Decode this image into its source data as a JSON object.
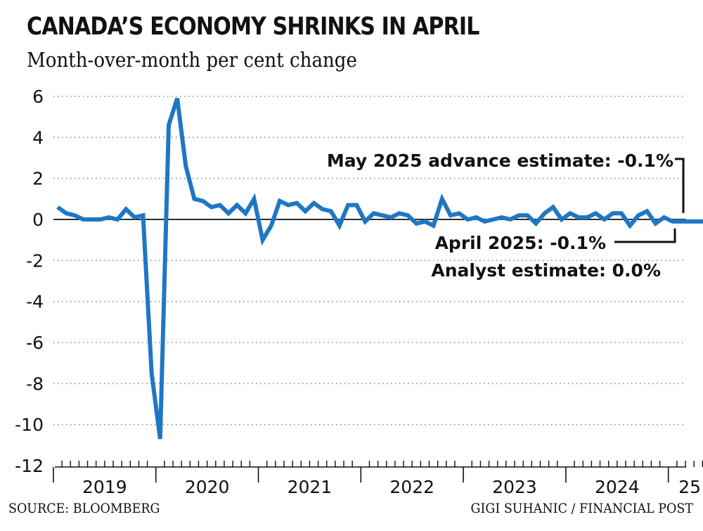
{
  "header": {
    "title": "CANADA’S ECONOMY SHRINKS IN APRIL",
    "subtitle": "Month-over-month per cent change"
  },
  "footer": {
    "source": "SOURCE: BLOOMBERG",
    "credit": "GIGI SUHANIC / FINANCIAL POST"
  },
  "colors": {
    "line": "#1f77c4",
    "axis": "#111111",
    "grid": "#888888"
  },
  "chart_data": {
    "type": "line",
    "title": "CANADA’S ECONOMY SHRINKS IN APRIL",
    "subtitle": "Month-over-month per cent change",
    "ylim": [
      -12,
      6
    ],
    "yticks": [
      "6",
      "4",
      "2",
      "0",
      "-2",
      "-4",
      "-6",
      "-8",
      "-10",
      "-12"
    ],
    "ytick_values": [
      6,
      4,
      2,
      0,
      -2,
      -4,
      -6,
      -8,
      -10,
      -12
    ],
    "grid": "dotted horizontal",
    "x_start": "2019-01",
    "x_end": "2025-05",
    "year_labels": [
      {
        "label": "2019",
        "year": 2019
      },
      {
        "label": "2020",
        "year": 2020
      },
      {
        "label": "2021",
        "year": 2021
      },
      {
        "label": "2022",
        "year": 2022
      },
      {
        "label": "2023",
        "year": 2023
      },
      {
        "label": "2024",
        "year": 2024
      },
      {
        "label": "25",
        "year": 2025
      }
    ],
    "series": [
      {
        "x": [
          "2019-01",
          "2019-02",
          "2019-03",
          "2019-04",
          "2019-05",
          "2019-06",
          "2019-07",
          "2019-08",
          "2019-09",
          "2019-10",
          "2019-11",
          "2019-12",
          "2020-01",
          "2020-02",
          "2020-03",
          "2020-04",
          "2020-05",
          "2020-06",
          "2020-07",
          "2020-08",
          "2020-09",
          "2020-10",
          "2020-11",
          "2020-12",
          "2021-01",
          "2021-02",
          "2021-03",
          "2021-04",
          "2021-05",
          "2021-06",
          "2021-07",
          "2021-08",
          "2021-09",
          "2021-10",
          "2021-11",
          "2021-12",
          "2022-01",
          "2022-02",
          "2022-03",
          "2022-04",
          "2022-05",
          "2022-06",
          "2022-07",
          "2022-08",
          "2022-09",
          "2022-10",
          "2022-11",
          "2022-12",
          "2023-01",
          "2023-02",
          "2023-03",
          "2023-04",
          "2023-05",
          "2023-06",
          "2023-07",
          "2023-08",
          "2023-09",
          "2023-10",
          "2023-11",
          "2023-12",
          "2024-01",
          "2024-02",
          "2024-03",
          "2024-04",
          "2024-05",
          "2024-06",
          "2024-07",
          "2024-08",
          "2024-09",
          "2024-10",
          "2024-11",
          "2024-12",
          "2025-01",
          "2025-02",
          "2025-03",
          "2025-04",
          "2025-05"
        ],
        "values": [
          0.6,
          0.3,
          0.2,
          0.0,
          0.0,
          0.0,
          0.1,
          0.0,
          0.5,
          0.1,
          0.2,
          -7.5,
          -10.7,
          4.6,
          5.9,
          2.6,
          1.0,
          0.9,
          0.6,
          0.7,
          0.3,
          0.7,
          0.3,
          1.0,
          -1.0,
          -0.3,
          0.9,
          0.7,
          0.8,
          0.4,
          0.8,
          0.5,
          0.4,
          -0.3,
          0.7,
          0.7,
          -0.1,
          0.3,
          0.2,
          0.1,
          0.3,
          0.2,
          -0.2,
          -0.1,
          -0.3,
          1.0,
          0.2,
          0.3,
          0.0,
          0.1,
          -0.1,
          0.0,
          0.1,
          0.0,
          0.2,
          0.2,
          -0.2,
          0.3,
          0.6,
          0.0,
          0.3,
          0.1,
          0.1,
          0.3,
          0.0,
          0.3,
          0.3,
          -0.3,
          0.2,
          0.4,
          -0.2,
          0.1,
          -0.1,
          -0.1,
          -0.1,
          -0.1,
          -0.1
        ]
      }
    ],
    "annotations": [
      {
        "text": "May 2025 advance estimate: -0.1%",
        "x": "2025-05",
        "y": -0.1
      },
      {
        "text": "April 2025: -0.1%",
        "x": "2025-04",
        "y": -0.1
      },
      {
        "text": "Analyst estimate: 0.0%",
        "x": "2025-04",
        "y": 0.0
      }
    ]
  }
}
